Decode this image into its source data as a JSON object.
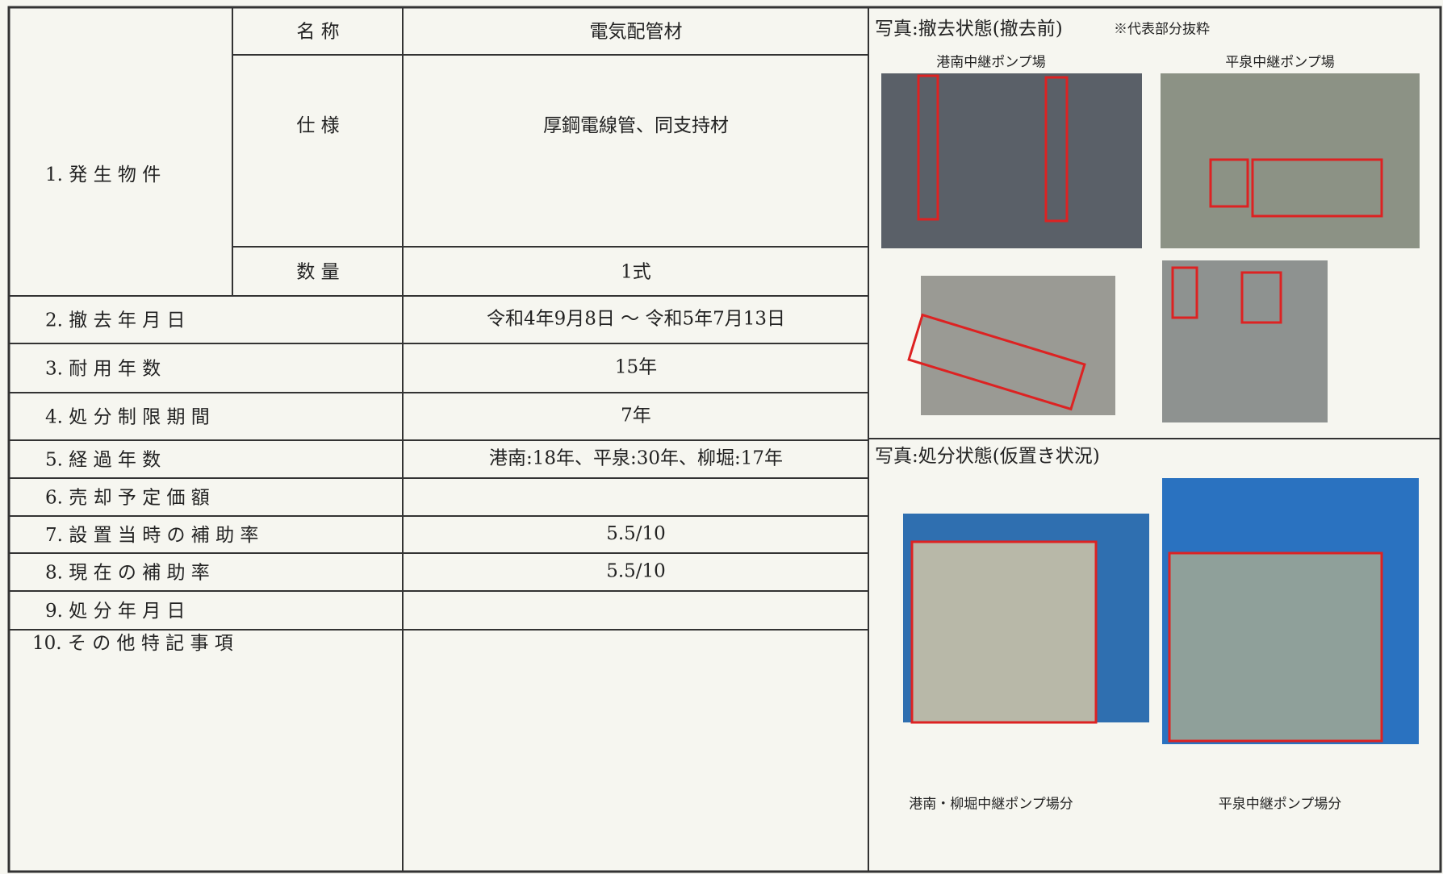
{
  "item1": {
    "label": "1. 発 生 物 件",
    "rows": [
      [
        "名 称",
        "電気配管材"
      ],
      [
        "仕 様",
        "厚鋼電線管、同支持材"
      ],
      [
        "数 量",
        "1式"
      ]
    ]
  },
  "rows": [
    {
      "label": "2. 撤 去 年 月 日",
      "value": "令和4年9月8日 ～ 令和5年7月13日"
    },
    {
      "label": "3. 耐 用 年 数",
      "value": "15年"
    },
    {
      "label": "4. 処 分 制 限 期 間",
      "value": "7年"
    },
    {
      "label": "5. 経 過 年 数",
      "value": "港南:18年、平泉:30年、柳堀:17年"
    },
    {
      "label": "6. 売 却 予 定 価 額"
    },
    {
      "label": "7. 設 置 当 時 の 補 助 率",
      "value": "5.5/10"
    },
    {
      "label": "8. 現 在 の 補 助 率",
      "value": "5.5/10"
    },
    {
      "label": "9. 処 分 年 月 日"
    },
    {
      "label": "10. そ の 他 特 記 事 項"
    }
  ],
  "photos_before": {
    "title": "写真:撤去状態(撤去前)",
    "note": "※代表部分抜粋",
    "captions": [
      "港南中継ポンプ場",
      "平泉中継ポンプ場"
    ]
  },
  "photos_after": {
    "title": "写真:処分状態(仮置き状況)",
    "captions": [
      "港南・柳堀中継ポンプ場分",
      "平泉中継ポンプ場分"
    ]
  }
}
